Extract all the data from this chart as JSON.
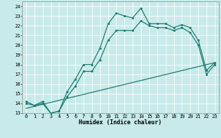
{
  "title": "",
  "xlabel": "Humidex (Indice chaleur)",
  "ylabel": "",
  "bg_color": "#c8eaea",
  "grid_color": "#ffffff",
  "line_color": "#1a7a6e",
  "xlim": [
    -0.5,
    23.5
  ],
  "ylim": [
    13,
    24.5
  ],
  "yticks": [
    13,
    14,
    15,
    16,
    17,
    18,
    19,
    20,
    21,
    22,
    23,
    24
  ],
  "xticks": [
    0,
    1,
    2,
    3,
    4,
    5,
    6,
    7,
    8,
    9,
    10,
    11,
    12,
    13,
    14,
    15,
    16,
    17,
    18,
    19,
    20,
    21,
    22,
    23
  ],
  "line1_x": [
    0,
    1,
    2,
    3,
    4,
    5,
    6,
    7,
    8,
    9,
    10,
    11,
    12,
    13,
    14,
    15,
    16,
    17,
    18,
    19,
    20,
    21,
    22,
    23
  ],
  "line1_y": [
    14.2,
    13.8,
    14.2,
    13.0,
    13.2,
    15.2,
    16.5,
    18.0,
    18.0,
    19.7,
    22.2,
    23.3,
    23.0,
    22.8,
    23.8,
    22.2,
    22.2,
    22.2,
    21.8,
    22.1,
    21.8,
    20.5,
    17.4,
    18.2
  ],
  "line2_x": [
    0,
    1,
    2,
    3,
    4,
    5,
    6,
    7,
    8,
    9,
    10,
    11,
    12,
    13,
    14,
    15,
    16,
    17,
    18,
    19,
    20,
    21,
    22,
    23
  ],
  "line2_y": [
    14.0,
    13.8,
    14.0,
    13.0,
    13.2,
    14.7,
    15.8,
    17.3,
    17.3,
    18.5,
    20.5,
    21.5,
    21.5,
    21.5,
    22.5,
    22.0,
    21.8,
    21.8,
    21.5,
    21.8,
    21.3,
    20.0,
    17.0,
    18.0
  ],
  "line3_x": [
    0,
    23
  ],
  "line3_y": [
    13.5,
    18.2
  ],
  "marker_size": 2,
  "line_width": 0.9,
  "font_size_label": 6,
  "font_size_tick": 5
}
